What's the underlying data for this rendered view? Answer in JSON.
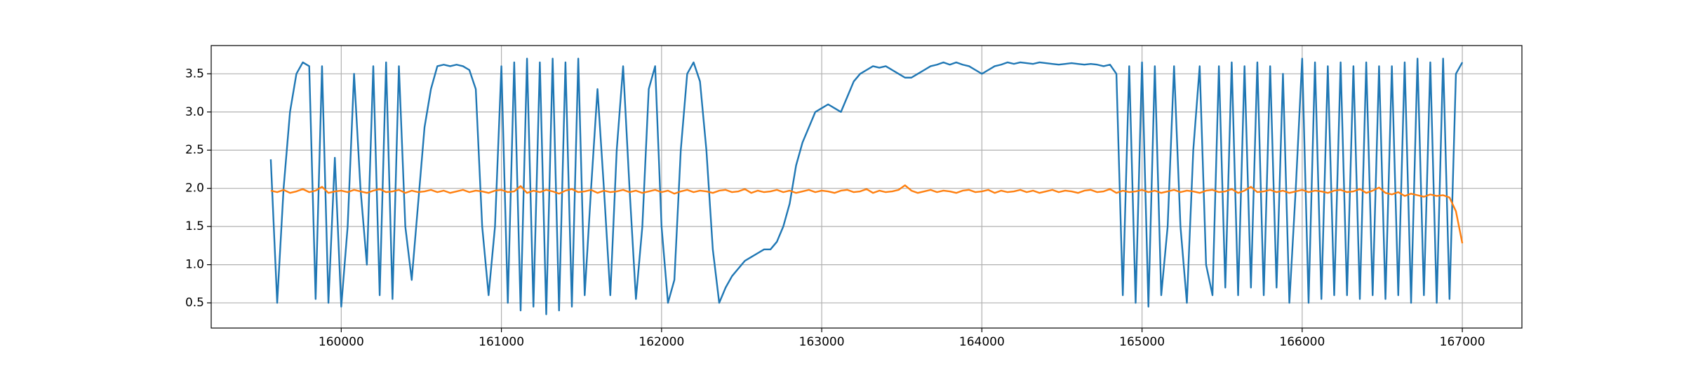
{
  "chart_data": {
    "type": "line",
    "x": [
      159560,
      159600,
      159640,
      159680,
      159720,
      159760,
      159800,
      159840,
      159880,
      159920,
      159960,
      160000,
      160040,
      160080,
      160120,
      160160,
      160200,
      160240,
      160280,
      160320,
      160360,
      160400,
      160440,
      160480,
      160520,
      160560,
      160600,
      160640,
      160680,
      160720,
      160760,
      160800,
      160840,
      160880,
      160920,
      160960,
      161000,
      161040,
      161080,
      161120,
      161160,
      161200,
      161240,
      161280,
      161320,
      161360,
      161400,
      161440,
      161480,
      161520,
      161560,
      161600,
      161640,
      161680,
      161720,
      161760,
      161800,
      161840,
      161880,
      161920,
      161960,
      162000,
      162040,
      162080,
      162120,
      162160,
      162200,
      162240,
      162280,
      162320,
      162360,
      162400,
      162440,
      162480,
      162520,
      162560,
      162600,
      162640,
      162680,
      162720,
      162760,
      162800,
      162840,
      162880,
      162920,
      162960,
      163000,
      163040,
      163080,
      163120,
      163160,
      163200,
      163240,
      163280,
      163320,
      163360,
      163400,
      163440,
      163480,
      163520,
      163560,
      163600,
      163640,
      163680,
      163720,
      163760,
      163800,
      163840,
      163880,
      163920,
      163960,
      164000,
      164040,
      164080,
      164120,
      164160,
      164200,
      164240,
      164280,
      164320,
      164360,
      164400,
      164440,
      164480,
      164520,
      164560,
      164600,
      164640,
      164680,
      164720,
      164760,
      164800,
      164840,
      164880,
      164920,
      164960,
      165000,
      165040,
      165080,
      165120,
      165160,
      165200,
      165240,
      165280,
      165320,
      165360,
      165400,
      165440,
      165480,
      165520,
      165560,
      165600,
      165640,
      165680,
      165720,
      165760,
      165800,
      165840,
      165880,
      165920,
      165960,
      166000,
      166040,
      166080,
      166120,
      166160,
      166200,
      166240,
      166280,
      166320,
      166360,
      166400,
      166440,
      166480,
      166520,
      166560,
      166600,
      166640,
      166680,
      166720,
      166760,
      166800,
      166840,
      166880,
      166920,
      166960,
      167000
    ],
    "series": [
      {
        "color": "#1f77b4",
        "values": [
          2.38,
          0.5,
          2.0,
          3.0,
          3.5,
          3.65,
          3.6,
          0.55,
          3.6,
          0.5,
          2.4,
          0.45,
          1.5,
          3.5,
          2.0,
          1.0,
          3.6,
          0.6,
          3.65,
          0.55,
          3.6,
          1.5,
          0.8,
          1.8,
          2.8,
          3.3,
          3.6,
          3.62,
          3.6,
          3.62,
          3.6,
          3.55,
          3.3,
          1.5,
          0.6,
          1.5,
          3.6,
          0.5,
          3.65,
          0.4,
          3.7,
          0.45,
          3.65,
          0.35,
          3.7,
          0.4,
          3.65,
          0.45,
          3.7,
          0.6,
          2.0,
          3.3,
          2.0,
          0.6,
          2.5,
          3.6,
          2.0,
          0.55,
          1.5,
          3.3,
          3.6,
          1.5,
          0.5,
          0.8,
          2.5,
          3.5,
          3.65,
          3.4,
          2.5,
          1.2,
          0.5,
          0.7,
          0.85,
          0.95,
          1.05,
          1.1,
          1.15,
          1.2,
          1.2,
          1.3,
          1.5,
          1.8,
          2.3,
          2.6,
          2.8,
          3.0,
          3.05,
          3.1,
          3.05,
          3.0,
          3.2,
          3.4,
          3.5,
          3.55,
          3.6,
          3.58,
          3.6,
          3.55,
          3.5,
          3.45,
          3.45,
          3.5,
          3.55,
          3.6,
          3.62,
          3.65,
          3.62,
          3.65,
          3.62,
          3.6,
          3.55,
          3.5,
          3.55,
          3.6,
          3.62,
          3.65,
          3.63,
          3.65,
          3.64,
          3.63,
          3.65,
          3.64,
          3.63,
          3.62,
          3.63,
          3.64,
          3.63,
          3.62,
          3.63,
          3.62,
          3.6,
          3.62,
          3.5,
          0.6,
          3.6,
          0.5,
          3.65,
          0.45,
          3.6,
          0.6,
          1.5,
          3.6,
          1.5,
          0.5,
          2.5,
          3.6,
          1.0,
          0.6,
          3.6,
          0.7,
          3.65,
          0.6,
          3.6,
          0.7,
          3.65,
          0.6,
          3.6,
          0.7,
          3.5,
          0.5,
          2.0,
          3.7,
          0.5,
          3.65,
          0.55,
          3.6,
          0.6,
          3.65,
          0.6,
          3.6,
          0.55,
          3.65,
          0.6,
          3.6,
          0.55,
          3.6,
          0.6,
          3.65,
          0.5,
          3.7,
          0.6,
          3.65,
          0.5,
          3.7,
          0.55,
          3.5,
          3.65
        ]
      },
      {
        "color": "#ff7f0e",
        "values": [
          1.97,
          1.95,
          1.98,
          1.94,
          1.96,
          1.99,
          1.95,
          1.97,
          2.02,
          1.94,
          1.96,
          1.97,
          1.95,
          1.98,
          1.96,
          1.94,
          1.97,
          1.99,
          1.95,
          1.96,
          1.98,
          1.94,
          1.97,
          1.95,
          1.96,
          1.98,
          1.95,
          1.97,
          1.94,
          1.96,
          1.98,
          1.95,
          1.97,
          1.96,
          1.94,
          1.97,
          1.98,
          1.95,
          1.96,
          2.03,
          1.94,
          1.97,
          1.95,
          1.98,
          1.96,
          1.93,
          1.97,
          1.99,
          1.95,
          1.96,
          1.98,
          1.94,
          1.97,
          1.95,
          1.96,
          1.98,
          1.95,
          1.97,
          1.94,
          1.96,
          1.98,
          1.95,
          1.97,
          1.93,
          1.96,
          1.98,
          1.95,
          1.97,
          1.96,
          1.94,
          1.97,
          1.98,
          1.95,
          1.96,
          1.99,
          1.94,
          1.97,
          1.95,
          1.96,
          1.98,
          1.95,
          1.97,
          1.94,
          1.96,
          1.98,
          1.95,
          1.97,
          1.96,
          1.94,
          1.97,
          1.98,
          1.95,
          1.96,
          1.99,
          1.94,
          1.97,
          1.95,
          1.96,
          1.98,
          2.04,
          1.97,
          1.94,
          1.96,
          1.98,
          1.95,
          1.97,
          1.96,
          1.94,
          1.97,
          1.98,
          1.95,
          1.96,
          1.98,
          1.94,
          1.97,
          1.95,
          1.96,
          1.98,
          1.95,
          1.97,
          1.94,
          1.96,
          1.98,
          1.95,
          1.97,
          1.96,
          1.94,
          1.97,
          1.98,
          1.95,
          1.96,
          1.99,
          1.94,
          1.97,
          1.95,
          1.96,
          1.98,
          1.95,
          1.97,
          1.94,
          1.96,
          1.98,
          1.95,
          1.97,
          1.96,
          1.94,
          1.97,
          1.98,
          1.95,
          1.96,
          1.99,
          1.94,
          1.97,
          2.02,
          1.95,
          1.96,
          1.98,
          1.95,
          1.97,
          1.94,
          1.96,
          1.98,
          1.95,
          1.97,
          1.96,
          1.94,
          1.97,
          1.98,
          1.95,
          1.96,
          1.99,
          1.94,
          1.97,
          2.01,
          1.94,
          1.92,
          1.95,
          1.9,
          1.93,
          1.91,
          1.89,
          1.92,
          1.9,
          1.91,
          1.88,
          1.7,
          1.28
        ]
      }
    ],
    "xlim": [
      159188,
      167372
    ],
    "ylim": [
      0.17,
      3.87
    ],
    "xticks": [
      160000,
      161000,
      162000,
      163000,
      164000,
      165000,
      166000,
      167000
    ],
    "yticks": [
      0.5,
      {
        "value": 1,
        "label": "1.0"
      },
      1.5,
      {
        "value": 2,
        "label": "2.0"
      },
      2.5,
      {
        "value": 3,
        "label": "3.0"
      },
      3.5
    ],
    "grid": true
  }
}
